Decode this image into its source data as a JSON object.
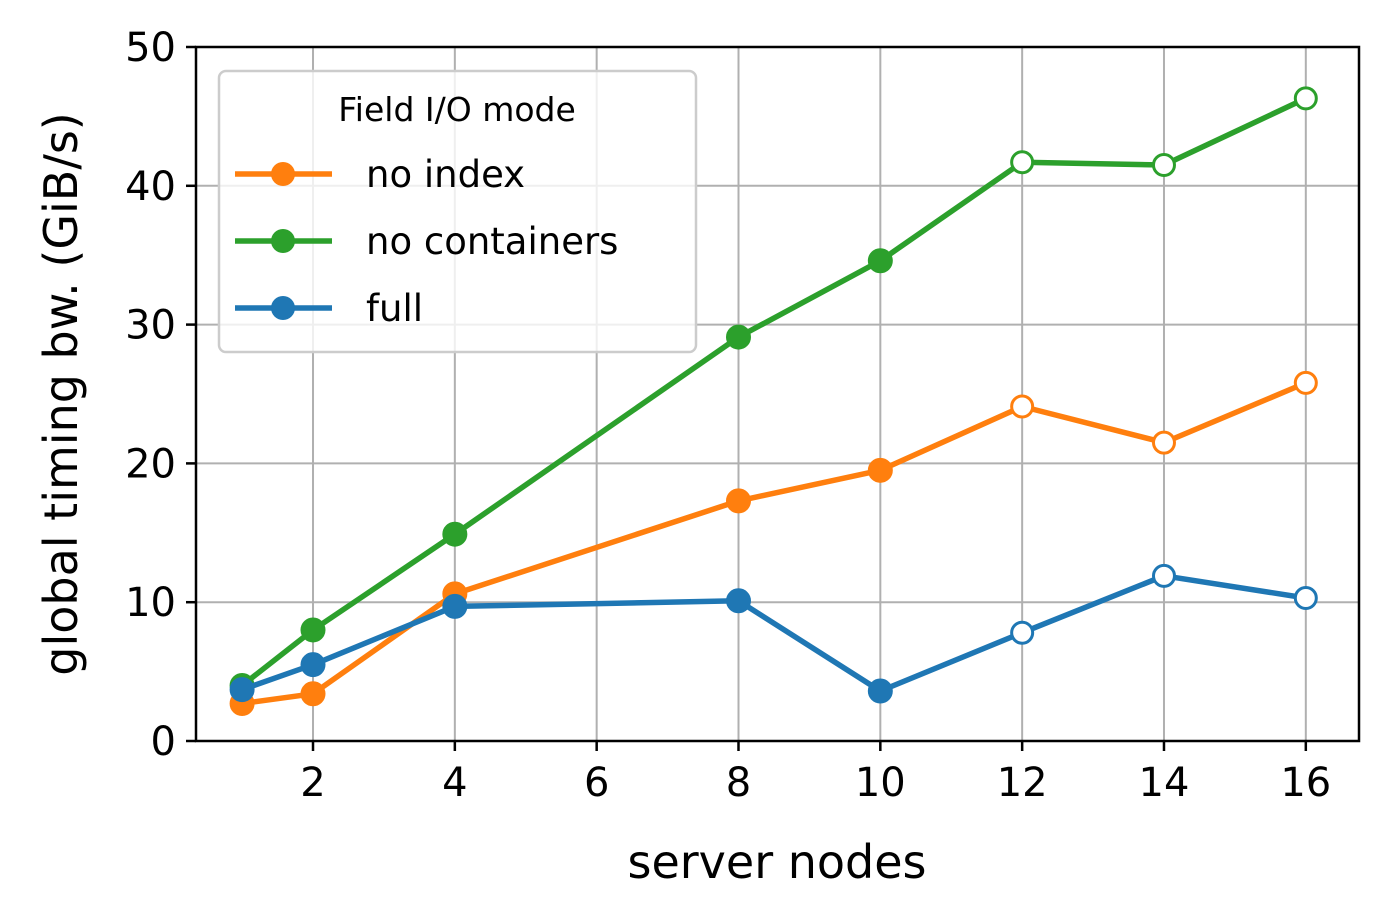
{
  "chart_data": {
    "type": "line",
    "title": "",
    "xlabel": "server nodes",
    "ylabel": "global timing bw. (GiB/s)",
    "xlim": [
      0.35,
      16.75
    ],
    "ylim": [
      0,
      50
    ],
    "x_ticks": [
      2,
      4,
      6,
      8,
      10,
      12,
      14,
      16
    ],
    "y_ticks": [
      0,
      10,
      20,
      30,
      40,
      50
    ],
    "grid": true,
    "legend": {
      "title": "Field I/O mode",
      "placement": "top-left"
    },
    "marker_note": "filled markers for 1-10 server nodes, hollow markers for 12-16 server nodes",
    "series": [
      {
        "name": "no index",
        "color": "#ff7f0e",
        "x": [
          1,
          2,
          4,
          8,
          10,
          12,
          14,
          16
        ],
        "y": [
          2.7,
          3.4,
          10.6,
          17.3,
          19.5,
          24.1,
          21.5,
          25.8
        ],
        "hollow": [
          false,
          false,
          false,
          false,
          false,
          true,
          true,
          true
        ]
      },
      {
        "name": "no containers",
        "color": "#2ca02c",
        "x": [
          1,
          2,
          4,
          8,
          10,
          12,
          14,
          16
        ],
        "y": [
          4.0,
          8.0,
          14.9,
          29.1,
          34.6,
          41.7,
          41.5,
          46.3
        ],
        "hollow": [
          false,
          false,
          false,
          false,
          false,
          true,
          true,
          true
        ]
      },
      {
        "name": "full",
        "color": "#1f77b4",
        "x": [
          1,
          2,
          4,
          8,
          10,
          12,
          14,
          16
        ],
        "y": [
          3.7,
          5.5,
          9.7,
          10.1,
          3.6,
          7.8,
          11.9,
          10.3
        ],
        "hollow": [
          false,
          false,
          false,
          false,
          false,
          true,
          true,
          true
        ]
      }
    ]
  }
}
